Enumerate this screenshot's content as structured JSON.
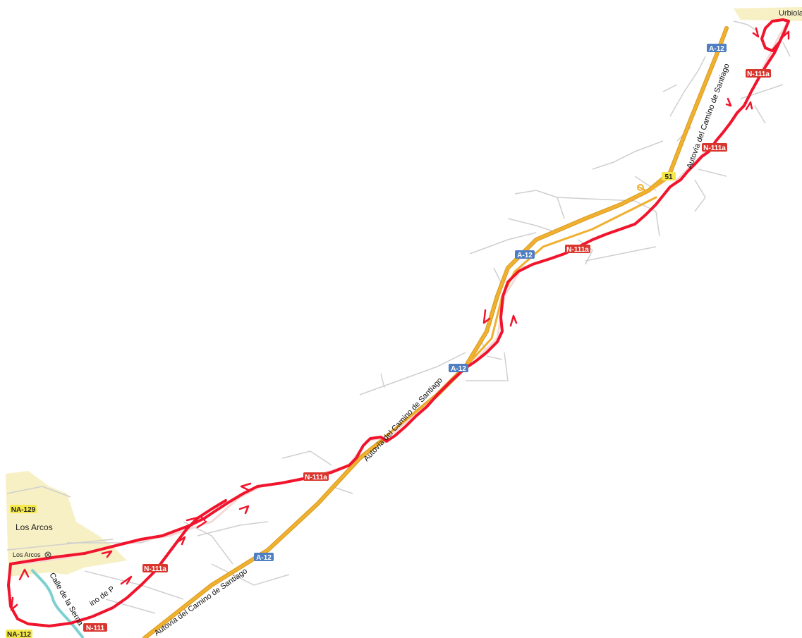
{
  "map": {
    "places": {
      "los_arcos": "Los Arcos",
      "los_arcos_small": "Los Arcos",
      "urbiola": "Urbiola"
    },
    "road_names": {
      "autovia_lower": "Autovía del Camino de Santiago",
      "autovia_middle": "Autovía del Camino de Santiago",
      "autovia_upper": "Autovía del Camino de Santiago",
      "calle_serna": "Calle de la Serna",
      "local_road": "ino de P"
    },
    "shields": {
      "a12_1": "A-12",
      "a12_2": "A-12",
      "a12_3": "A-12",
      "a12_4": "A-12",
      "n111a_1": "N-111a",
      "n111a_2": "N-111a",
      "n111a_3": "N-111a",
      "n111a_4": "N-111a",
      "n111a_5": "N-111a",
      "n111": "N-111",
      "na129": "NA-129",
      "na112": "NA-112",
      "exit51": "51"
    },
    "colors": {
      "motorway": "#f0b030",
      "motorway_casing": "#d79a1f",
      "track": "#f0142c",
      "a_shield": "#4f7ec2",
      "n_shield": "#d9362e",
      "na_shield": "#f4e84a",
      "town": "#f7f0c4",
      "minor_road": "#cfcfcf",
      "river": "#7fd0d0"
    }
  }
}
